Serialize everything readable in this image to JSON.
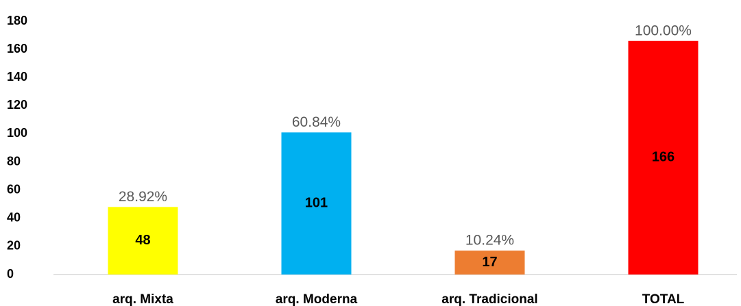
{
  "chart_data": {
    "type": "bar",
    "categories": [
      "arq. Mixta",
      "arq. Moderna",
      "arq. Tradicional",
      "TOTAL"
    ],
    "values": [
      48,
      101,
      17,
      166
    ],
    "colors": [
      "#ffff00",
      "#00b0f0",
      "#ed7d31",
      "#ff0000"
    ],
    "percent_labels": [
      "28.92%",
      "60.84%",
      "10.24%",
      "100.00%"
    ],
    "ylim": [
      0,
      180
    ],
    "yticks": [
      0,
      20,
      40,
      60,
      80,
      100,
      120,
      140,
      160,
      180
    ],
    "grid": false
  }
}
